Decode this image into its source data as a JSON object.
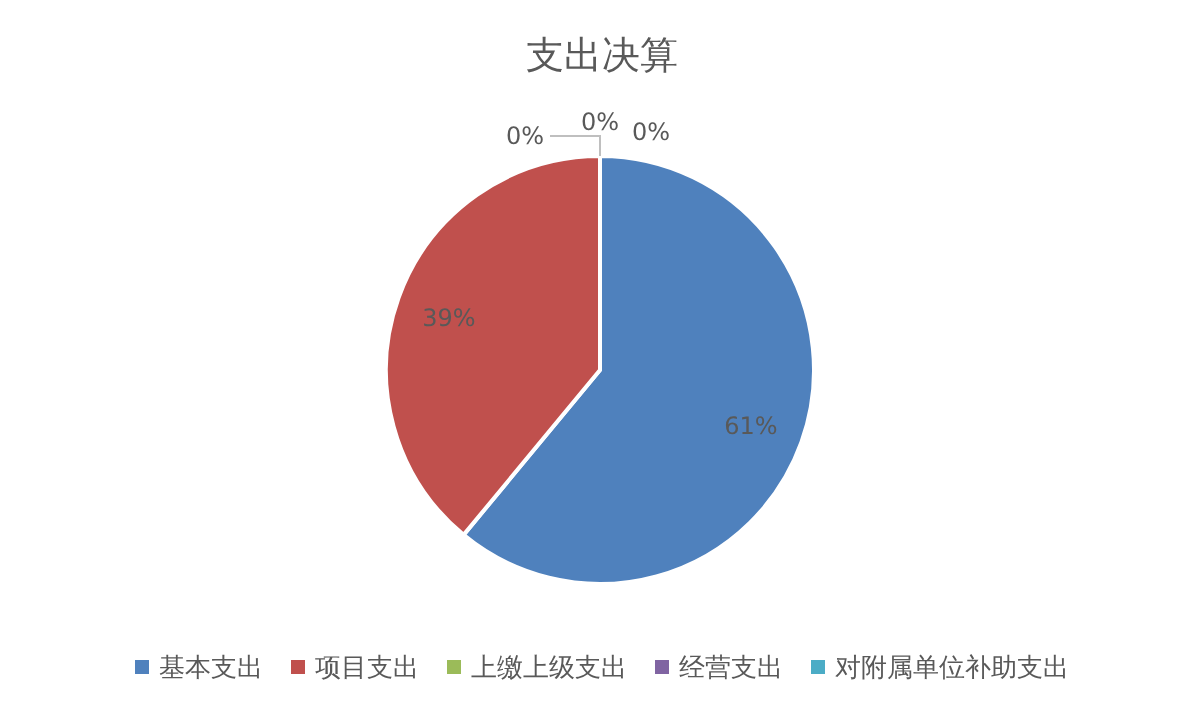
{
  "chart_data": {
    "type": "pie",
    "title": "支出决算",
    "categories": [
      "基本支出",
      "项目支出",
      "上缴上级支出",
      "经营支出",
      "对附属单位补助支出"
    ],
    "values": [
      61,
      39,
      0,
      0,
      0
    ],
    "colors": [
      "#4f81bd",
      "#c0504d",
      "#9bbb59",
      "#8064a2",
      "#4bacc6"
    ],
    "value_labels": [
      "61%",
      "39%",
      "0%",
      "0%",
      "0%"
    ],
    "legend": "bottom"
  }
}
